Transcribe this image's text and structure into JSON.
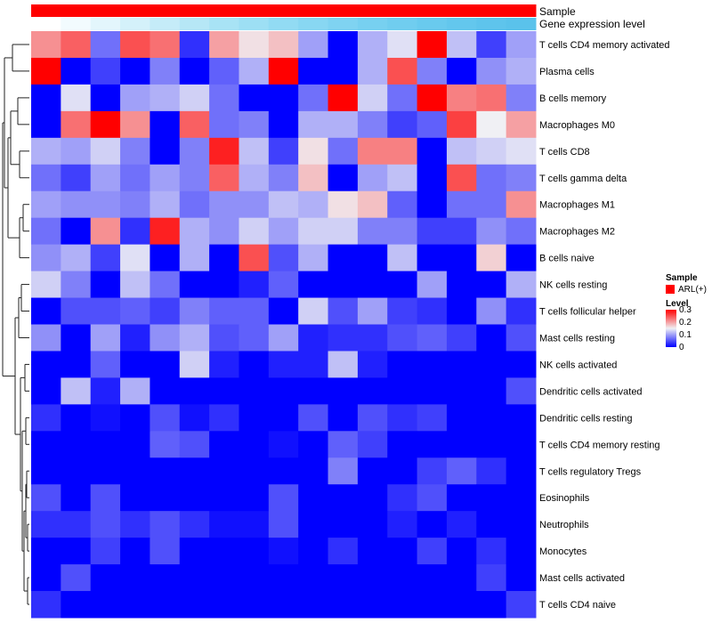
{
  "chart_data": {
    "type": "heatmap",
    "annotation_tracks": [
      {
        "name": "Sample",
        "label": "Sample"
      },
      {
        "name": "Gene expression level",
        "label": "Gene expression level"
      }
    ],
    "gene_expression_colors": [
      "#ffffff",
      "#f2fbfe",
      "#e3f6fc",
      "#d4f1fa",
      "#c5ecf8",
      "#b6e7f6",
      "#a8e3f5",
      "#9ddff4",
      "#92dbf3",
      "#88d7f2",
      "#7fd3f1",
      "#77d0f0",
      "#70cdef",
      "#69caee",
      "#63c7ed",
      "#5ec4ec",
      "#5ac2eb",
      "#56c0ea"
    ],
    "sample_color": "#ff0000",
    "rows": [
      "T cells CD4 memory activated",
      "Plasma cells",
      "B cells memory",
      "Macrophages M0",
      "T cells CD8",
      "T cells gamma delta",
      "Macrophages M1",
      "Macrophages M2",
      "B cells naive",
      "NK cells resting",
      "T cells follicular helper",
      "Mast cells resting",
      "NK cells activated",
      "Dendritic cells activated",
      "Dendritic cells resting",
      "T cells CD4 memory resting",
      "T cells regulatory  Tregs",
      "Eosinophils",
      "Neutrophils",
      "Monocytes",
      "Mast cells activated",
      "T cells CD4 naive"
    ],
    "num_columns": 17,
    "values": [
      [
        0.21,
        0.24,
        0.07,
        0.25,
        0.23,
        0.03,
        0.2,
        0.16,
        0.18,
        0.1,
        0.0,
        0.11,
        0.14,
        0.3,
        0.12,
        0.04,
        0.1
      ],
      [
        0.3,
        0.0,
        0.04,
        0.0,
        0.08,
        0.0,
        0.06,
        0.11,
        0.3,
        0.0,
        0.0,
        0.11,
        0.25,
        0.08,
        0.0,
        0.09,
        0.11
      ],
      [
        0.0,
        0.14,
        0.0,
        0.1,
        0.11,
        0.13,
        0.07,
        0.0,
        0.0,
        0.07,
        0.3,
        0.13,
        0.07,
        0.3,
        0.22,
        0.23,
        0.08
      ],
      [
        0.0,
        0.23,
        0.3,
        0.21,
        0.0,
        0.24,
        0.07,
        0.08,
        0.0,
        0.11,
        0.11,
        0.08,
        0.04,
        0.06,
        0.26,
        0.15,
        0.2
      ],
      [
        0.11,
        0.1,
        0.13,
        0.08,
        0.0,
        0.08,
        0.28,
        0.12,
        0.04,
        0.16,
        0.07,
        0.22,
        0.22,
        0.0,
        0.12,
        0.13,
        0.14
      ],
      [
        0.07,
        0.04,
        0.1,
        0.07,
        0.1,
        0.08,
        0.24,
        0.11,
        0.08,
        0.18,
        0.0,
        0.1,
        0.12,
        0.0,
        0.25,
        0.07,
        0.08
      ],
      [
        0.1,
        0.09,
        0.09,
        0.08,
        0.11,
        0.07,
        0.09,
        0.09,
        0.12,
        0.11,
        0.16,
        0.18,
        0.06,
        0.0,
        0.07,
        0.07,
        0.21
      ],
      [
        0.07,
        0.0,
        0.21,
        0.03,
        0.28,
        0.11,
        0.09,
        0.13,
        0.1,
        0.13,
        0.13,
        0.08,
        0.08,
        0.04,
        0.04,
        0.09,
        0.07
      ],
      [
        0.09,
        0.11,
        0.04,
        0.14,
        0.0,
        0.11,
        0.0,
        0.25,
        0.05,
        0.11,
        0.0,
        0.0,
        0.12,
        0.0,
        0.0,
        0.17,
        0.0
      ],
      [
        0.13,
        0.08,
        0.0,
        0.12,
        0.07,
        0.0,
        0.0,
        0.02,
        0.06,
        0.0,
        0.0,
        0.0,
        0.0,
        0.1,
        0.0,
        0.0,
        0.11
      ],
      [
        0.0,
        0.05,
        0.05,
        0.06,
        0.04,
        0.08,
        0.06,
        0.06,
        0.0,
        0.13,
        0.05,
        0.1,
        0.04,
        0.03,
        0.0,
        0.09,
        0.03
      ],
      [
        0.09,
        0.0,
        0.1,
        0.02,
        0.09,
        0.11,
        0.05,
        0.06,
        0.1,
        0.02,
        0.03,
        0.03,
        0.05,
        0.06,
        0.04,
        0.0,
        0.05
      ],
      [
        0.0,
        0.0,
        0.06,
        0.0,
        0.0,
        0.13,
        0.02,
        0.0,
        0.02,
        0.02,
        0.12,
        0.02,
        0.0,
        0.0,
        0.0,
        0.0,
        0.0
      ],
      [
        0.0,
        0.12,
        0.02,
        0.11,
        0.0,
        0.0,
        0.0,
        0.0,
        0.0,
        0.0,
        0.0,
        0.0,
        0.0,
        0.0,
        0.0,
        0.0,
        0.05
      ],
      [
        0.03,
        0.0,
        0.01,
        0.0,
        0.05,
        0.01,
        0.03,
        0.0,
        0.0,
        0.05,
        0.0,
        0.05,
        0.03,
        0.04,
        0.0,
        0.0,
        0.0
      ],
      [
        0.0,
        0.0,
        0.0,
        0.0,
        0.06,
        0.05,
        0.0,
        0.0,
        0.01,
        0.0,
        0.06,
        0.04,
        0.0,
        0.0,
        0.0,
        0.0,
        0.0
      ],
      [
        0.0,
        0.0,
        0.0,
        0.0,
        0.0,
        0.0,
        0.0,
        0.0,
        0.0,
        0.0,
        0.08,
        0.0,
        0.0,
        0.04,
        0.06,
        0.03,
        0.0
      ],
      [
        0.05,
        0.0,
        0.05,
        0.0,
        0.0,
        0.0,
        0.0,
        0.0,
        0.05,
        0.0,
        0.0,
        0.0,
        0.03,
        0.05,
        0.0,
        0.0,
        0.0
      ],
      [
        0.03,
        0.03,
        0.05,
        0.03,
        0.05,
        0.03,
        0.01,
        0.01,
        0.05,
        0.0,
        0.0,
        0.0,
        0.02,
        0.0,
        0.02,
        0.0,
        0.0
      ],
      [
        0.0,
        0.0,
        0.04,
        0.0,
        0.05,
        0.0,
        0.0,
        0.0,
        0.01,
        0.0,
        0.03,
        0.0,
        0.0,
        0.04,
        0.0,
        0.03,
        0.0
      ],
      [
        0.0,
        0.05,
        0.0,
        0.0,
        0.0,
        0.0,
        0.0,
        0.0,
        0.0,
        0.0,
        0.0,
        0.0,
        0.0,
        0.0,
        0.0,
        0.04,
        0.0
      ],
      [
        0.03,
        0.0,
        0.0,
        0.0,
        0.0,
        0.0,
        0.0,
        0.0,
        0.0,
        0.0,
        0.0,
        0.0,
        0.0,
        0.0,
        0.0,
        0.0,
        0.04
      ]
    ],
    "color_scale": {
      "min": 0,
      "max": 0.3,
      "low": "#0000ff",
      "mid": "#f0f0f4",
      "high": "#ff0000",
      "mid_value": 0.15
    },
    "legend": {
      "sample_title": "Sample",
      "sample_item": "ARL(+)",
      "level_title": "Level",
      "level_ticks": [
        "0.3",
        "0.2",
        "0.1",
        "0"
      ],
      "placement": "right"
    },
    "dendrogram": "rows"
  }
}
